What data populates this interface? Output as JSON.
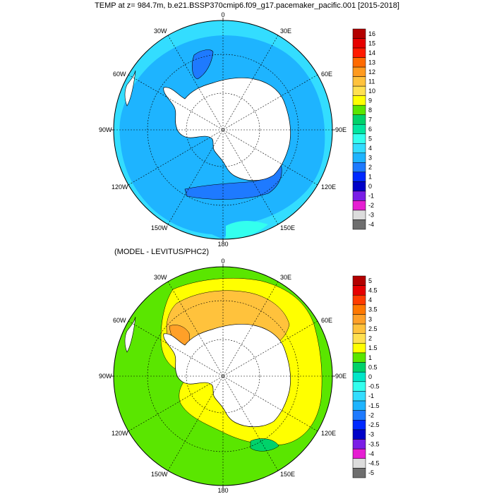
{
  "title": "TEMP at z= 984.7m, b.e21.BSSP370cmip6.f09_g17.pacemaker_pacific.001 [2015-2018]",
  "subtitle": "(MODEL - LEVITUS/PHC2)",
  "lon_labels": [
    "0",
    "30E",
    "60E",
    "90E",
    "120E",
    "150E",
    "180",
    "150W",
    "120W",
    "90W",
    "60W",
    "30W"
  ],
  "top_map": {
    "colorbar": {
      "levels": [
        "16",
        "15",
        "14",
        "13",
        "12",
        "11",
        "10",
        "9",
        "8",
        "7",
        "6",
        "5",
        "4",
        "3",
        "2",
        "1",
        "0",
        "-1",
        "-2",
        "-3",
        "-4"
      ],
      "colors": [
        "#b30000",
        "#e60000",
        "#ff1a00",
        "#ff6a00",
        "#ff9a1e",
        "#ffc23c",
        "#ffe050",
        "#ffff00",
        "#5ae600",
        "#00d26a",
        "#00e6a0",
        "#33ffee",
        "#33ddff",
        "#1eb4ff",
        "#1e7aff",
        "#0028ff",
        "#0000c8",
        "#7a1ee6",
        "#e61ed2",
        "#dcdcdc",
        "#6e6e6e"
      ]
    }
  },
  "bottom_map": {
    "colorbar": {
      "levels": [
        "5",
        "4.5",
        "4",
        "3.5",
        "3",
        "2.5",
        "2",
        "1.5",
        "1",
        "0.5",
        "0",
        "-0.5",
        "-1",
        "-1.5",
        "-2",
        "-2.5",
        "-3",
        "-3.5",
        "-4",
        "-4.5",
        "-5"
      ],
      "colors": [
        "#b30000",
        "#e60000",
        "#ff3c00",
        "#ff7800",
        "#ffa028",
        "#ffc23c",
        "#ffe050",
        "#ffff00",
        "#5ae600",
        "#00d26a",
        "#00e6c8",
        "#33ffee",
        "#33ddff",
        "#1eb4ff",
        "#1e7aff",
        "#0028ff",
        "#0000c8",
        "#7a1ee6",
        "#e61ed2",
        "#dcdcdc",
        "#6e6e6e"
      ]
    }
  }
}
